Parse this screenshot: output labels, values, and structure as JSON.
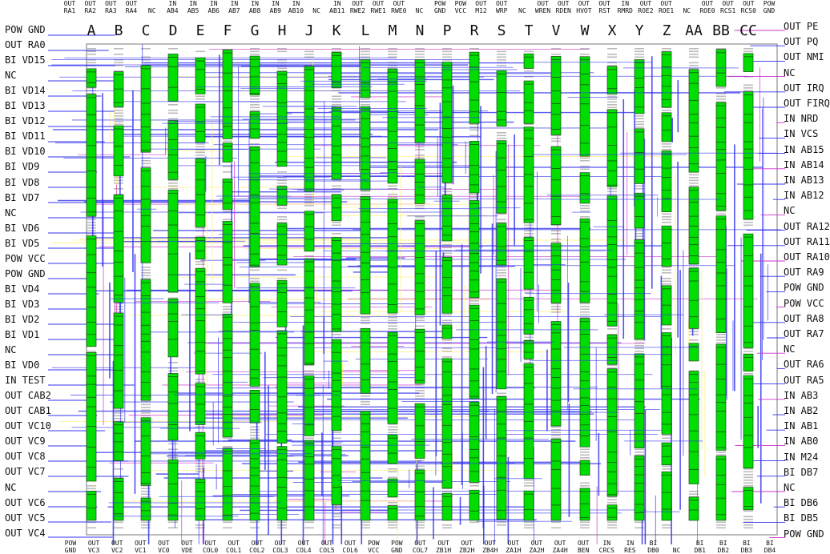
{
  "title": "",
  "colors": {
    "chip": "#00dd00",
    "chip_edge": "#224422",
    "trace": "#3333ee",
    "trace_alt": "#cc33cc",
    "trace_yellow": "#ffee66",
    "pad_grey": "#bbbbbb"
  },
  "column_letters": [
    "A",
    "B",
    "C",
    "D",
    "E",
    "F",
    "G",
    "H",
    "J",
    "K",
    "L",
    "M",
    "N",
    "P",
    "R",
    "S",
    "T",
    "V",
    "W",
    "X",
    "Y",
    "Z",
    "AA",
    "BB",
    "CC"
  ],
  "left_pins": [
    "POW GND",
    "OUT RA0",
    "BI VD15",
    "NC",
    "BI VD14",
    "BI VD13",
    "BI VD12",
    "BI VD11",
    "BI VD10",
    "BI VD9",
    "BI VD8",
    "BI VD7",
    "NC",
    "BI VD6",
    "BI VD5",
    "POW VCC",
    "POW GND",
    "BI VD4",
    "BI VD3",
    "BI VD2",
    "BI VD1",
    "NC",
    "BI VD0",
    "IN TEST",
    "OUT CAB2",
    "OUT CAB1",
    "OUT VC10",
    "OUT VC9",
    "OUT VC8",
    "OUT VC7",
    "NC",
    "OUT VC6",
    "OUT VC5",
    "OUT VC4"
  ],
  "right_pins": [
    "OUT PE",
    "OUT PQ",
    "OUT NMI",
    "NC",
    "OUT IRQ",
    "OUT FIRQ",
    "IN NRD",
    "IN VCS",
    "IN AB15",
    "IN AB14",
    "IN AB13",
    "IN AB12",
    "NC",
    "OUT RA12",
    "OUT RA11",
    "OUT RA10",
    "OUT RA9",
    "POW GND",
    "POW VCC",
    "OUT RA8",
    "OUT RA7",
    "NC",
    "OUT RA6",
    "OUT RA5",
    "IN AB3",
    "IN AB2",
    "IN AB1",
    "IN AB0",
    "IN M24",
    "BI DB7",
    "NC",
    "BI DB6",
    "BI DB5",
    "POW GND"
  ],
  "top_pins": [
    {
      "a": "OUT",
      "b": "RA1"
    },
    {
      "a": "OUT",
      "b": "RA2"
    },
    {
      "a": "OUT",
      "b": "RA3"
    },
    {
      "a": "OUT",
      "b": "RA4"
    },
    {
      "a": "",
      "b": "NC"
    },
    {
      "a": "IN",
      "b": "AB4"
    },
    {
      "a": "IN",
      "b": "AB5"
    },
    {
      "a": "IN",
      "b": "AB6"
    },
    {
      "a": "IN",
      "b": "AB7"
    },
    {
      "a": "IN",
      "b": "AB8"
    },
    {
      "a": "IN",
      "b": "AB9"
    },
    {
      "a": "IN",
      "b": "AB10"
    },
    {
      "a": "",
      "b": "NC"
    },
    {
      "a": "IN",
      "b": "AB11"
    },
    {
      "a": "OUT",
      "b": "RWE2"
    },
    {
      "a": "OUT",
      "b": "RWE1"
    },
    {
      "a": "OUT",
      "b": "RWE0"
    },
    {
      "a": "",
      "b": "NC"
    },
    {
      "a": "POW",
      "b": "GND"
    },
    {
      "a": "POW",
      "b": "VCC"
    },
    {
      "a": "OUT",
      "b": "M12"
    },
    {
      "a": "OUT",
      "b": "WRP"
    },
    {
      "a": "",
      "b": "NC"
    },
    {
      "a": "OUT",
      "b": "WREN"
    },
    {
      "a": "OUT",
      "b": "RDEN"
    },
    {
      "a": "OUT",
      "b": "HVOT"
    },
    {
      "a": "OUT",
      "b": "RST"
    },
    {
      "a": "IN",
      "b": "RMRD"
    },
    {
      "a": "OUT",
      "b": "ROE2"
    },
    {
      "a": "OUT",
      "b": "ROE1"
    },
    {
      "a": "",
      "b": "NC"
    },
    {
      "a": "OUT",
      "b": "ROE0"
    },
    {
      "a": "OUT",
      "b": "RCS1"
    },
    {
      "a": "OUT",
      "b": "RCS0"
    },
    {
      "a": "POW",
      "b": "GND"
    }
  ],
  "bottom_pins": [
    {
      "a": "POW",
      "b": "GND"
    },
    {
      "a": "OUT",
      "b": "VC3"
    },
    {
      "a": "OUT",
      "b": "VC2"
    },
    {
      "a": "OUT",
      "b": "VC1"
    },
    {
      "a": "OUT",
      "b": "VC0"
    },
    {
      "a": "OUT",
      "b": "VDE"
    },
    {
      "a": "OUT",
      "b": "COL0"
    },
    {
      "a": "OUT",
      "b": "COL1"
    },
    {
      "a": "OUT",
      "b": "COL2"
    },
    {
      "a": "OUT",
      "b": "COL3"
    },
    {
      "a": "OUT",
      "b": "COL4"
    },
    {
      "a": "OUT",
      "b": "COL5"
    },
    {
      "a": "OUT",
      "b": "COL6"
    },
    {
      "a": "POW",
      "b": "VCC"
    },
    {
      "a": "POW",
      "b": "GND"
    },
    {
      "a": "OUT",
      "b": "COL7"
    },
    {
      "a": "OUT",
      "b": "ZB1H"
    },
    {
      "a": "OUT",
      "b": "ZB2H"
    },
    {
      "a": "OUT",
      "b": "ZB4H"
    },
    {
      "a": "OUT",
      "b": "ZA1H"
    },
    {
      "a": "OUT",
      "b": "ZA2H"
    },
    {
      "a": "OUT",
      "b": "ZA4H"
    },
    {
      "a": "OUT",
      "b": "BEN"
    },
    {
      "a": "IN",
      "b": "CRCS"
    },
    {
      "a": "IN",
      "b": "RES"
    },
    {
      "a": "BI",
      "b": "DB0"
    },
    {
      "a": "",
      "b": "NC"
    },
    {
      "a": "BI",
      "b": "DB1"
    },
    {
      "a": "BI",
      "b": "DB2"
    },
    {
      "a": "BI",
      "b": "DB3"
    },
    {
      "a": "BI",
      "b": "DB4"
    }
  ]
}
